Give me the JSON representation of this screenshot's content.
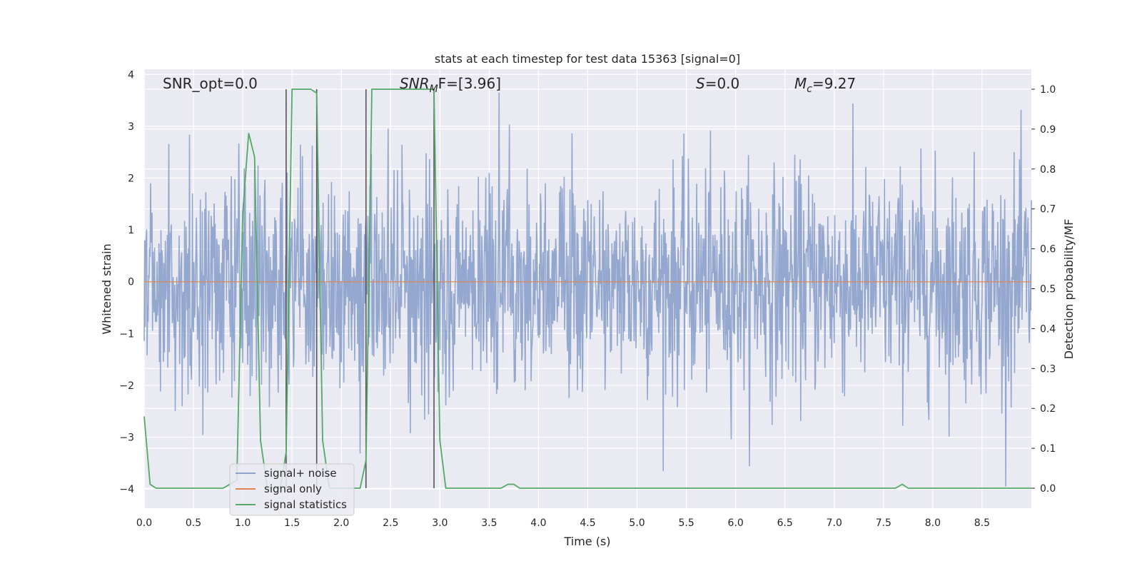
{
  "chart_data": {
    "type": "line",
    "title": "stats at each timestep for test data 15363 [signal=0]",
    "xlabel": "Time (s)",
    "ylabel_left": "Whitened strain",
    "ylabel_right": "Detection probability/MF",
    "xlim": [
      0.0,
      9.0
    ],
    "ylim_left": [
      -4.37,
      4.1
    ],
    "ylim_right": [
      -0.05,
      1.05
    ],
    "x_ticks": [
      "0.0",
      "0.5",
      "1.0",
      "1.5",
      "2.0",
      "2.5",
      "3.0",
      "3.5",
      "4.0",
      "4.5",
      "5.0",
      "5.5",
      "6.0",
      "6.5",
      "7.0",
      "7.5",
      "8.0",
      "8.5"
    ],
    "x_tick_values": [
      0.0,
      0.5,
      1.0,
      1.5,
      2.0,
      2.5,
      3.0,
      3.5,
      4.0,
      4.5,
      5.0,
      5.5,
      6.0,
      6.5,
      7.0,
      7.5,
      8.0,
      8.5
    ],
    "y_left_ticks": [
      "4",
      "3",
      "2",
      "1",
      "0",
      "−1",
      "−2",
      "−3",
      "−4"
    ],
    "y_left_tick_values": [
      4,
      3,
      2,
      1,
      0,
      -1,
      -2,
      -3,
      -4
    ],
    "y_right_ticks": [
      "1.0",
      "0.9",
      "0.8",
      "0.7",
      "0.6",
      "0.5",
      "0.4",
      "0.3",
      "0.2",
      "0.1",
      "0.0"
    ],
    "y_right_tick_values": [
      1.0,
      0.9,
      0.8,
      0.7,
      0.6,
      0.5,
      0.4,
      0.3,
      0.2,
      0.1,
      0.0
    ],
    "grid": true,
    "legend_position": "lower-left",
    "annotations": {
      "snr_opt": "SNR_opt=0.0",
      "snr_mf_main": "SNR",
      "snr_mf_sub": "M",
      "snr_mf_rest": "F=[3.96]",
      "s_main": "S",
      "s_rest": "=0.0",
      "mc_main": "M",
      "mc_sub": "c",
      "mc_rest": "=9.27"
    },
    "noise_envelope": {
      "description_range": "signal+ noise whitened strain fluctuates roughly between -4 and 3.7",
      "typical_abs": 1.7
    },
    "vertical_lines_x": [
      1.44,
      1.75,
      2.25,
      2.94
    ],
    "series": [
      {
        "name": "signal+ noise",
        "color": "#8ea3cc",
        "axis": "left"
      },
      {
        "name": "signal only",
        "color": "#dd8452",
        "axis": "left",
        "x": [
          0.0,
          9.0
        ],
        "y": [
          0.0,
          0.0
        ]
      },
      {
        "name": "signal statistics",
        "color": "#55a868",
        "axis": "right",
        "x": [
          0.0,
          0.06,
          0.12,
          0.2,
          0.5,
          0.8,
          0.94,
          1.0,
          1.06,
          1.12,
          1.18,
          1.25,
          1.32,
          1.38,
          1.44,
          1.5,
          1.56,
          1.62,
          1.69,
          1.75,
          1.81,
          1.88,
          1.94,
          2.0,
          2.06,
          2.12,
          2.19,
          2.25,
          2.31,
          2.38,
          2.5,
          2.75,
          2.88,
          2.94,
          3.0,
          3.06,
          3.12,
          3.5,
          3.62,
          3.69,
          3.75,
          3.81,
          4.0,
          5.0,
          6.0,
          7.0,
          7.5,
          7.62,
          7.69,
          7.75,
          7.81,
          8.0,
          9.0
        ],
        "y": [
          0.18,
          0.01,
          0.0,
          0.0,
          0.0,
          0.0,
          0.02,
          0.69,
          0.89,
          0.83,
          0.12,
          0.0,
          0.0,
          0.0,
          0.09,
          1.0,
          1.0,
          1.0,
          1.0,
          0.99,
          0.12,
          0.0,
          0.0,
          0.0,
          0.0,
          0.0,
          0.0,
          0.07,
          1.0,
          1.0,
          1.0,
          1.0,
          1.0,
          1.0,
          0.12,
          0.0,
          0.0,
          0.0,
          0.0,
          0.01,
          0.01,
          0.0,
          0.0,
          0.0,
          0.0,
          0.0,
          0.0,
          0.0,
          0.01,
          0.0,
          0.0,
          0.0,
          0.0
        ]
      }
    ]
  }
}
